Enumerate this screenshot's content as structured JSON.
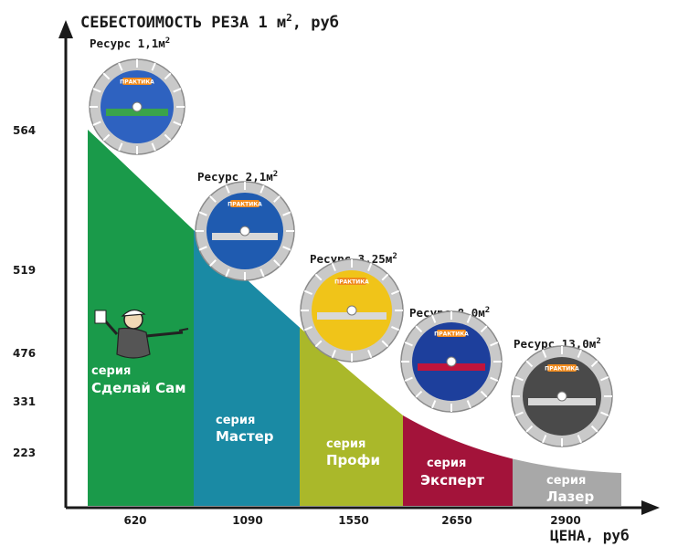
{
  "chart_data": {
    "type": "area",
    "title": "СЕБЕСТОИМОСТЬ РЕЗА 1 м",
    "title_sup": "2",
    "title_suffix": ", руб",
    "xlabel": "ЦЕНА, руб",
    "y_ticks": [
      "564",
      "519",
      "476",
      "331",
      "223"
    ],
    "curve": "decreasing cost curve from about 564 at the first segment to about 223 at the last segment",
    "segments": [
      {
        "price": "620",
        "series_word": "серия",
        "series_name": "Сделай Сам",
        "resource": "Ресурс 1,1м",
        "sup": "2",
        "color": "#1a9a4a",
        "brand": "ПРАКТИКА"
      },
      {
        "price": "1090",
        "series_word": "серия",
        "series_name": "Мастер",
        "resource": "Ресурс 2,1м",
        "sup": "2",
        "color": "#1a8aa4",
        "brand": "ПРАКТИКА"
      },
      {
        "price": "1550",
        "series_word": "серия",
        "series_name": "Профи",
        "resource": "Ресурс 3,25м",
        "sup": "2",
        "color": "#aab82a",
        "brand": "ПРАКТИКА"
      },
      {
        "price": "2650",
        "series_word": "серия",
        "series_name": "Эксперт",
        "resource": "Ресурс 8,0м",
        "sup": "2",
        "color": "#a3133a",
        "brand": "ПРАКТИКА"
      },
      {
        "price": "2900",
        "series_word": "серия",
        "series_name": "Лазер",
        "resource": "Ресурс 13,0м",
        "sup": "2",
        "color": "#a8a8a8",
        "brand": "ПРАКТИКА"
      }
    ],
    "colors": {
      "axis": "#1a1a1a",
      "disc_blade": "#c9c9c9",
      "disc_label": "#1f3f9e"
    },
    "grid": false,
    "legend": "none"
  }
}
